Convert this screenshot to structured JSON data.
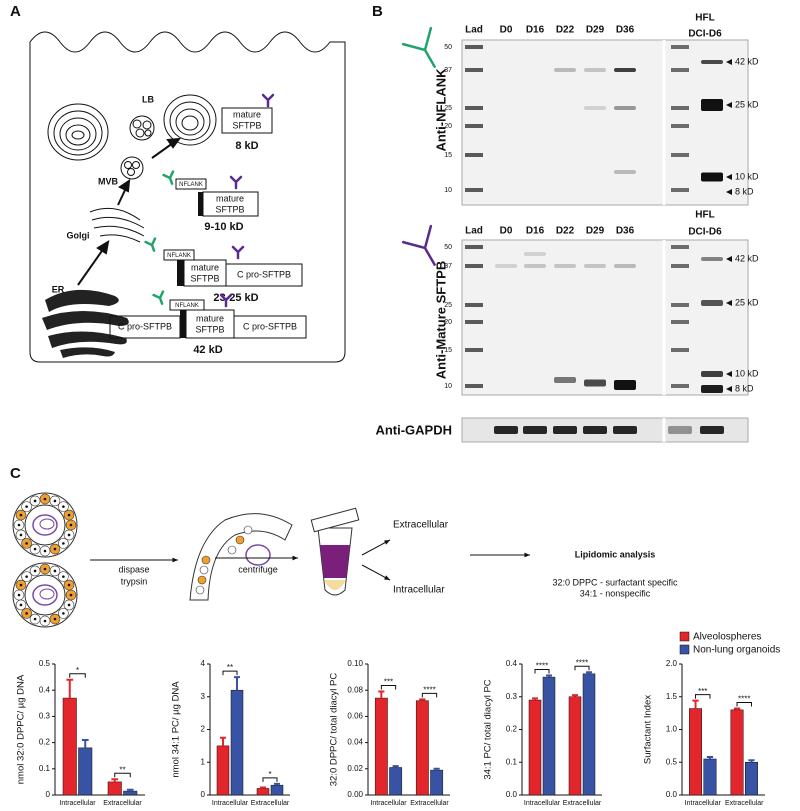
{
  "panels": [
    "A",
    "B",
    "C"
  ],
  "diagram": {
    "lb": "LB",
    "mvb": "MVB",
    "golgi": "Golgi",
    "er": "ER",
    "forms": [
      {
        "mature": [
          "mature",
          "SFTPB"
        ],
        "size": "8 kD"
      },
      {
        "nflank": "NFLANK",
        "mature": [
          "mature",
          "SFTPB"
        ],
        "size": "9-10 kD"
      },
      {
        "nflank": "NFLANK",
        "mature": [
          "mature",
          "SFTPB"
        ],
        "cpro": "C pro-SFTPB",
        "size": "23-25 kD"
      },
      {
        "nflank": "NFLANK",
        "cpro_left": "C pro-SFTPB",
        "mature": [
          "mature",
          "SFTPB"
        ],
        "cpro": "C pro-SFTPB",
        "size": "42 kD"
      }
    ]
  },
  "blots": [
    {
      "antibody": "Anti-NFLANK",
      "lanes": [
        "Lad",
        "D0",
        "D16",
        "D22",
        "D29",
        "D36"
      ],
      "last_lane": [
        "HFL",
        "DCI-D6"
      ],
      "ladder": [
        50,
        37,
        25,
        20,
        15,
        10
      ],
      "markers": [
        "42 kD",
        "25 kD",
        "10 kD",
        "8 kD"
      ]
    },
    {
      "antibody": "Anti-Mature SFTPB",
      "lanes": [
        "Lad",
        "D0",
        "D16",
        "D22",
        "D29",
        "D36"
      ],
      "last_lane": [
        "HFL",
        "DCI-D6"
      ],
      "ladder": [
        50,
        37,
        25,
        20,
        15,
        10
      ],
      "markers": [
        "42 kD",
        "25 kD",
        "10 kD",
        "8 kD"
      ]
    },
    {
      "antibody": "Anti-GAPDH"
    }
  ],
  "schematic": {
    "enzymes": [
      "dispase",
      "trypsin"
    ],
    "step": "centrifuge",
    "fractions": [
      "Extracellular",
      "Intracellular"
    ],
    "analysis": "Lipidomic analysis",
    "notes": [
      "32:0 DPPC - surfactant specific",
      "34:1 - nonspecific"
    ]
  },
  "legend": [
    {
      "name": "Alveolospheres",
      "color": "#e3262b"
    },
    {
      "name": "Non-lung organoids",
      "color": "#3853a4"
    }
  ],
  "chart_data": [
    {
      "type": "bar",
      "ylabel": "nmol 32:0 DPPC/ µg DNA",
      "categories": [
        "Intracellular",
        "Extracellular"
      ],
      "series": [
        {
          "values": [
            0.37,
            0.05
          ],
          "errors": [
            0.07,
            0.01
          ]
        },
        {
          "values": [
            0.18,
            0.015
          ],
          "errors": [
            0.03,
            0.005
          ]
        }
      ],
      "significance": [
        "*",
        "**"
      ],
      "ylim": [
        0,
        0.5
      ],
      "yticks": [
        0,
        0.1,
        0.2,
        0.3,
        0.4,
        0.5
      ]
    },
    {
      "type": "bar",
      "ylabel": "nmol 34:1 PC/ µg DNA",
      "categories": [
        "Intracellular",
        "Extracellular"
      ],
      "series": [
        {
          "values": [
            1.5,
            0.2
          ],
          "errors": [
            0.25,
            0.03
          ]
        },
        {
          "values": [
            3.2,
            0.3
          ],
          "errors": [
            0.4,
            0.04
          ]
        }
      ],
      "significance": [
        "**",
        "*"
      ],
      "ylim": [
        0,
        4
      ],
      "yticks": [
        0,
        1,
        2,
        3,
        4
      ]
    },
    {
      "type": "bar",
      "ylabel": "32:0 DPPC/ total diacyl PC",
      "categories": [
        "Intracellular",
        "Extracellular"
      ],
      "series": [
        {
          "values": [
            0.074,
            0.072
          ],
          "errors": [
            0.005,
            0.001
          ]
        },
        {
          "values": [
            0.021,
            0.019
          ],
          "errors": [
            0.001,
            0.001
          ]
        }
      ],
      "significance": [
        "***",
        "****"
      ],
      "ylim": [
        0,
        0.1
      ],
      "yticks": [
        {
          "value": 0,
          "label": "0.00"
        },
        {
          "value": 0.02,
          "label": "0.02"
        },
        {
          "value": 0.04,
          "label": "0.04"
        },
        {
          "value": 0.06,
          "label": "0.06"
        },
        {
          "value": 0.08,
          "label": "0.08"
        },
        {
          "value": 0.1,
          "label": "0.10"
        }
      ]
    },
    {
      "type": "bar",
      "ylabel": "34:1 PC/ total diacyl PC",
      "categories": [
        "Intracellular",
        "Extracellular"
      ],
      "series": [
        {
          "values": [
            0.29,
            0.3
          ],
          "errors": [
            0.005,
            0.005
          ]
        },
        {
          "values": [
            0.36,
            0.37
          ],
          "errors": [
            0.005,
            0.005
          ]
        }
      ],
      "significance": [
        "****",
        "****"
      ],
      "ylim": [
        0,
        0.4
      ],
      "yticks": [
        {
          "value": 0,
          "label": "0.0"
        },
        0.1,
        0.2,
        0.3,
        0.4
      ]
    },
    {
      "type": "bar",
      "ylabel": "Surfactant Index",
      "categories": [
        "Intracellular",
        "Extracellular"
      ],
      "series": [
        {
          "values": [
            1.32,
            1.3
          ],
          "errors": [
            0.12,
            0.02
          ]
        },
        {
          "values": [
            0.55,
            0.5
          ],
          "errors": [
            0.03,
            0.03
          ]
        }
      ],
      "significance": [
        "***",
        "****"
      ],
      "ylim": [
        0,
        2
      ],
      "yticks": [
        {
          "value": 0,
          "label": "0.0"
        },
        0.5,
        {
          "value": 1,
          "label": "1.0"
        },
        1.5,
        {
          "value": 2,
          "label": "2.0"
        }
      ]
    }
  ]
}
